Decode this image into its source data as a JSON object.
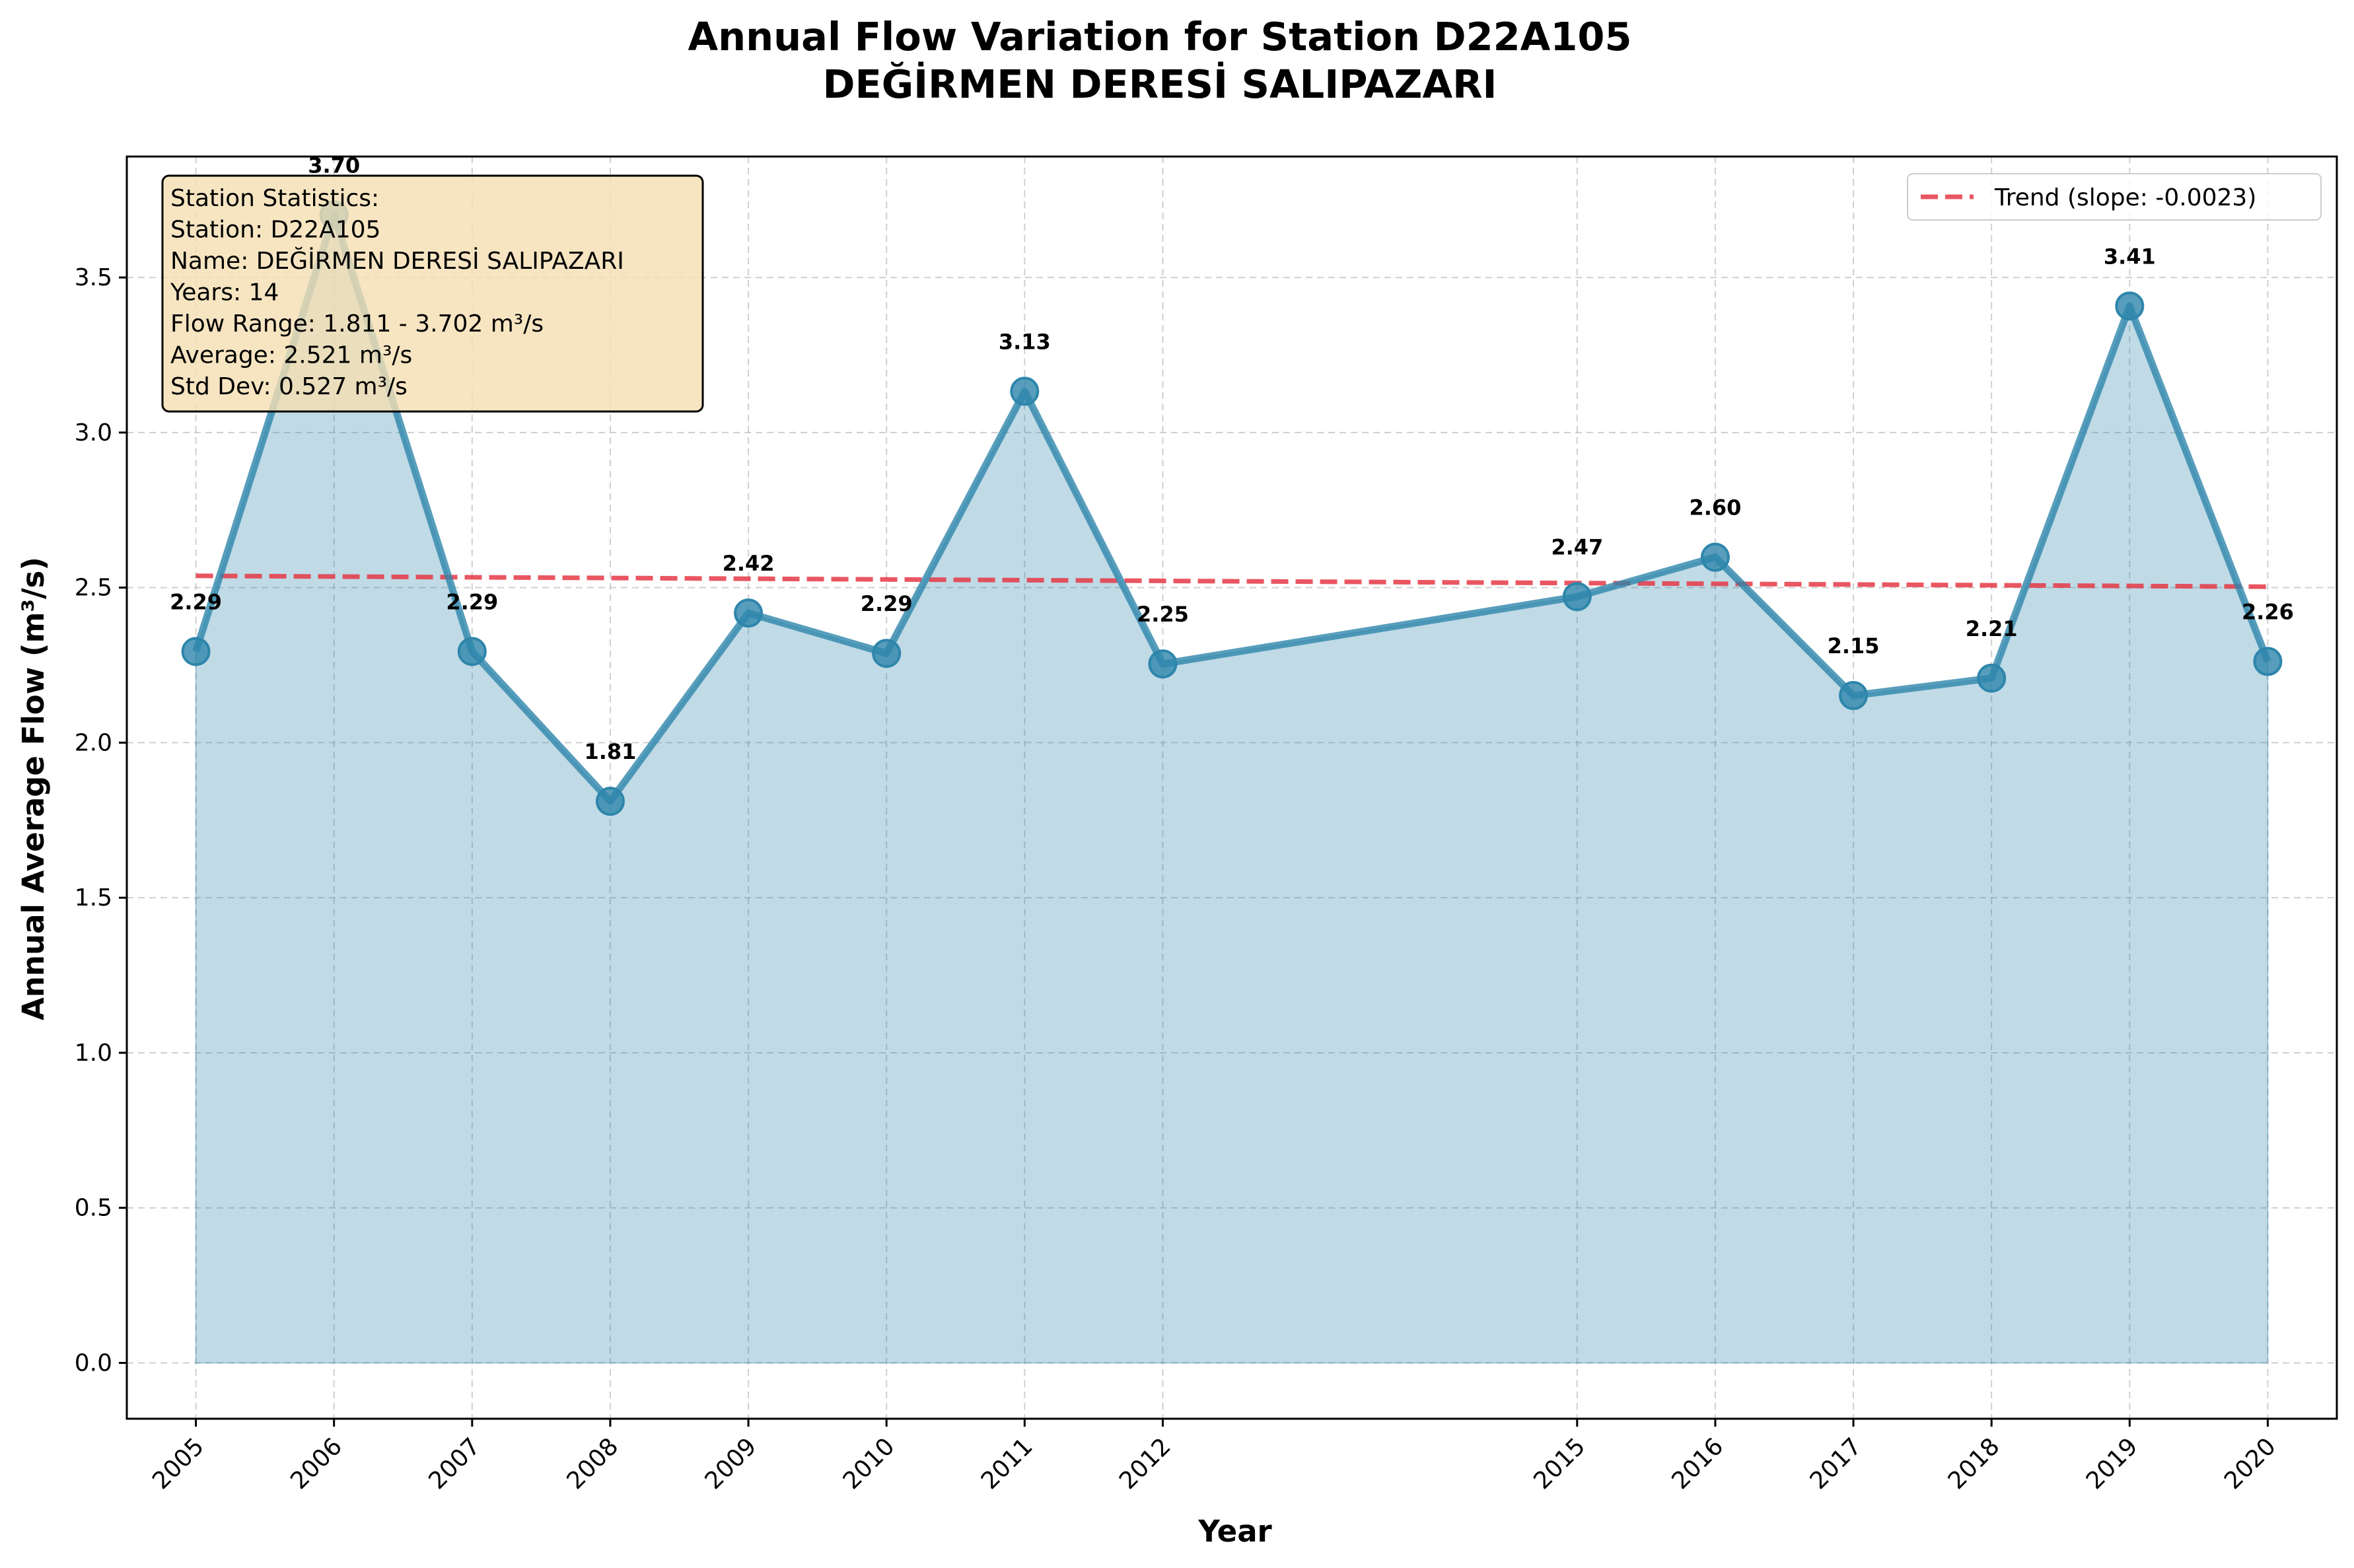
{
  "chart_data": {
    "type": "line",
    "title_line1": "Annual Flow Variation for Station D22A105",
    "title_line2": "DEĞİRMEN DERESİ SALIPAZARI",
    "xlabel": "Year",
    "ylabel": "Annual Average Flow (m³/s)",
    "x": [
      2005,
      2006,
      2007,
      2008,
      2009,
      2010,
      2011,
      2012,
      2015,
      2016,
      2017,
      2018,
      2019,
      2020
    ],
    "x_tick_labels": [
      "2005",
      "2006",
      "2007",
      "2008",
      "2009",
      "2010",
      "2011",
      "2012",
      "2015",
      "2016",
      "2017",
      "2018",
      "2019",
      "2020"
    ],
    "values": [
      2.294,
      3.702,
      2.294,
      1.811,
      2.418,
      2.288,
      3.133,
      2.254,
      2.471,
      2.598,
      2.152,
      2.208,
      3.408,
      2.262
    ],
    "data_labels": [
      "2.29",
      "3.70",
      "2.29",
      "1.81",
      "2.42",
      "2.29",
      "3.13",
      "2.25",
      "2.47",
      "2.60",
      "2.15",
      "2.21",
      "3.41",
      "2.26"
    ],
    "ylim": [
      -0.18,
      3.89
    ],
    "xlim": [
      2004.5,
      2020.5
    ],
    "y_ticks": [
      0.0,
      0.5,
      1.0,
      1.5,
      2.0,
      2.5,
      3.0,
      3.5
    ],
    "y_tick_labels": [
      "0.0",
      "0.5",
      "1.0",
      "1.5",
      "2.0",
      "2.5",
      "3.0",
      "3.5"
    ],
    "grid": true,
    "line_color": "#2E86AB",
    "fill_color": "#2E86AB",
    "trend": {
      "label": "Trend (slope: -0.0023)",
      "slope": -0.0023,
      "start": [
        2005,
        2.538
      ],
      "end": [
        2020,
        2.503
      ],
      "color": "#E63946"
    },
    "legend_position": "upper right",
    "stats_box": {
      "position": "upper left",
      "lines": [
        "Station Statistics:",
        "Station: D22A105",
        "Name: DEĞİRMEN DERESİ SALIPAZARI",
        "Years: 14",
        "Flow Range: 1.811 - 3.702 m³/s",
        "Average: 2.521 m³/s",
        "Std Dev: 0.527 m³/s"
      ],
      "background": "#F5DEB3"
    }
  }
}
